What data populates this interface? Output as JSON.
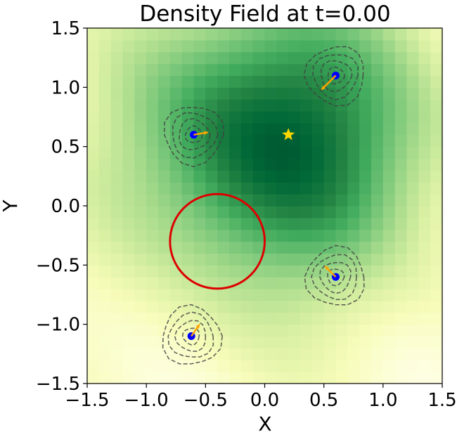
{
  "chart_data": {
    "type": "heatmap",
    "title": "Density Field at t=0.00",
    "xlabel": "X",
    "ylabel": "Y",
    "xlim": [
      -1.5,
      1.5
    ],
    "ylim": [
      -1.5,
      1.5
    ],
    "xticks": [
      -1.5,
      -1.0,
      -0.5,
      0.0,
      0.5,
      1.0,
      1.5
    ],
    "yticks": [
      -1.5,
      -1.0,
      -0.5,
      0.0,
      0.5,
      1.0,
      1.5
    ],
    "xtick_labels": [
      "−1.5",
      "−1.0",
      "−0.5",
      "0.0",
      "0.5",
      "1.0",
      "1.5"
    ],
    "ytick_labels": [
      "−1.5",
      "−1.0",
      "−0.5",
      "0.0",
      "0.5",
      "1.0",
      "1.5"
    ],
    "grid_resolution": 30,
    "density_peak": {
      "x": 0.1,
      "y": 0.55,
      "spread": 0.9
    },
    "target_star": {
      "x": 0.2,
      "y": 0.6
    },
    "circle_obstacle": {
      "x": -0.4,
      "y": -0.3,
      "r": 0.4
    },
    "agents": [
      {
        "x": -0.6,
        "y": 0.6,
        "vx": 0.12,
        "vy": 0.02
      },
      {
        "x": 0.6,
        "y": 1.1,
        "vx": -0.12,
        "vy": -0.12
      },
      {
        "x": 0.6,
        "y": -0.6,
        "vx": -0.09,
        "vy": 0.09
      },
      {
        "x": -0.62,
        "y": -1.1,
        "vx": 0.07,
        "vy": 0.1
      }
    ],
    "agent_contour_radii": [
      0.07,
      0.13,
      0.19,
      0.25
    ],
    "colors": {
      "agent": "#0000ff",
      "arrow": "#ffa500",
      "star": "#ffd700",
      "circle": "#dd0000",
      "contour": "#404040"
    }
  }
}
